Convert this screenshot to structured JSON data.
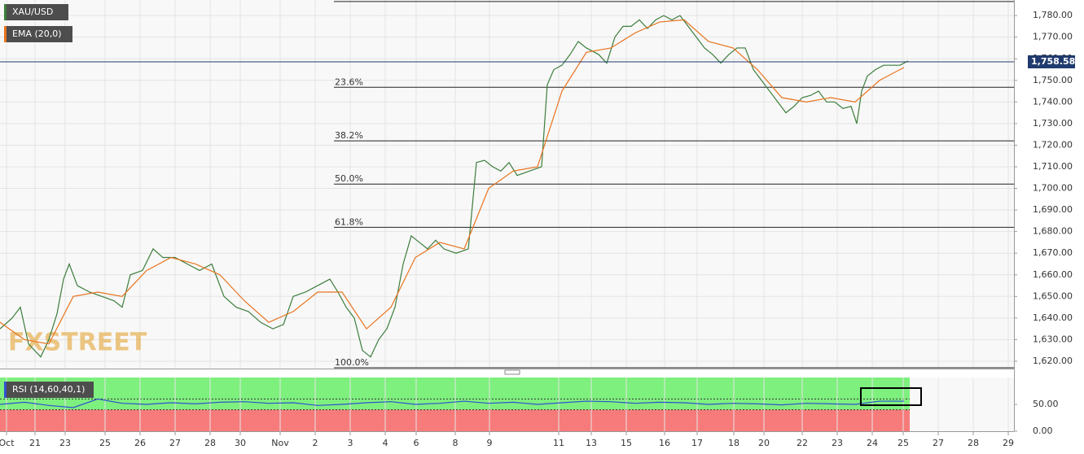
{
  "chart_data": [
    {
      "type": "line",
      "xlim": [
        0,
        1245
      ],
      "xticks": [
        {
          "value": 8,
          "label": "Oct"
        },
        {
          "value": 43,
          "label": "21"
        },
        {
          "value": 80,
          "label": "23"
        },
        {
          "value": 129,
          "label": "25"
        },
        {
          "value": 172,
          "label": "26"
        },
        {
          "value": 215,
          "label": "27"
        },
        {
          "value": 258,
          "label": "28"
        },
        {
          "value": 295,
          "label": "30"
        },
        {
          "value": 344,
          "label": "Nov"
        },
        {
          "value": 387,
          "label": "2"
        },
        {
          "value": 430,
          "label": "3"
        },
        {
          "value": 473,
          "label": "4"
        },
        {
          "value": 511,
          "label": "6"
        },
        {
          "value": 559,
          "label": "8"
        },
        {
          "value": 601,
          "label": "9"
        },
        {
          "value": 686,
          "label": "11"
        },
        {
          "value": 726,
          "label": "13"
        },
        {
          "value": 769,
          "label": "15"
        },
        {
          "value": 816,
          "label": "16"
        },
        {
          "value": 856,
          "label": "17"
        },
        {
          "value": 901,
          "label": "18"
        },
        {
          "value": 938,
          "label": "20"
        },
        {
          "value": 985,
          "label": "22"
        },
        {
          "value": 1028,
          "label": "23"
        },
        {
          "value": 1071,
          "label": "24"
        },
        {
          "value": 1109,
          "label": "25"
        },
        {
          "value": 1152,
          "label": "27"
        },
        {
          "value": 1195,
          "label": "28"
        },
        {
          "value": 1238,
          "label": "29"
        }
      ],
      "ylim": [
        1616.6,
        1787.2
      ],
      "yticks": [
        {
          "value": 1620,
          "label": "1,620.00"
        },
        {
          "value": 1630,
          "label": "1,630.00"
        },
        {
          "value": 1640,
          "label": "1,640.00"
        },
        {
          "value": 1650,
          "label": "1,650.00"
        },
        {
          "value": 1660,
          "label": "1,660.00"
        },
        {
          "value": 1670,
          "label": "1,670.00"
        },
        {
          "value": 1680,
          "label": "1,680.00"
        },
        {
          "value": 1690,
          "label": "1,690.00"
        },
        {
          "value": 1700,
          "label": "1,700.00"
        },
        {
          "value": 1710,
          "label": "1,710.00"
        },
        {
          "value": 1720,
          "label": "1,720.00"
        },
        {
          "value": 1730,
          "label": "1,730.00"
        },
        {
          "value": 1740,
          "label": "1,740.00"
        },
        {
          "value": 1750,
          "label": "1,750.00"
        },
        {
          "value": 1760,
          "label": "1,760.00"
        },
        {
          "value": 1770,
          "label": "1,770.00"
        },
        {
          "value": 1780,
          "label": "1,780.00"
        }
      ],
      "grid": true,
      "watermark": "FXSTREET",
      "series": [
        {
          "name": "XAU/USD",
          "color": "#3c7d3c",
          "x": [
            0,
            15,
            25,
            35,
            50,
            60,
            70,
            78,
            85,
            95,
            110,
            125,
            140,
            150,
            160,
            175,
            188,
            200,
            215,
            230,
            245,
            260,
            275,
            290,
            305,
            320,
            335,
            348,
            360,
            375,
            390,
            405,
            415,
            425,
            435,
            445,
            455,
            465,
            475,
            485,
            495,
            505,
            515,
            525,
            535,
            545,
            560,
            575,
            585,
            595,
            605,
            615,
            625,
            635,
            650,
            665,
            672,
            680,
            690,
            700,
            710,
            720,
            735,
            745,
            755,
            765,
            775,
            785,
            795,
            805,
            815,
            825,
            835,
            845,
            855,
            865,
            875,
            885,
            895,
            905,
            915,
            925,
            935,
            945,
            955,
            965,
            975,
            985,
            995,
            1005,
            1015,
            1025,
            1035,
            1045,
            1052,
            1058,
            1065,
            1075,
            1085,
            1095,
            1105,
            1115
          ],
          "values": [
            1635,
            1640,
            1645,
            1628,
            1622,
            1630,
            1642,
            1658,
            1665,
            1655,
            1652,
            1650,
            1648,
            1645,
            1660,
            1662,
            1672,
            1668,
            1668,
            1665,
            1662,
            1665,
            1650,
            1645,
            1643,
            1638,
            1635,
            1637,
            1650,
            1652,
            1655,
            1658,
            1652,
            1645,
            1640,
            1625,
            1622,
            1630,
            1635,
            1645,
            1665,
            1678,
            1675,
            1672,
            1676,
            1672,
            1670,
            1672,
            1712,
            1713,
            1710,
            1708,
            1712,
            1706,
            1708,
            1710,
            1748,
            1755,
            1757,
            1762,
            1768,
            1765,
            1762,
            1758,
            1770,
            1775,
            1775,
            1778,
            1774,
            1778,
            1780,
            1778,
            1780,
            1775,
            1770,
            1765,
            1762,
            1758,
            1762,
            1765,
            1765,
            1755,
            1750,
            1745,
            1740,
            1735,
            1738,
            1742,
            1743,
            1745,
            1740,
            1740,
            1737,
            1738,
            1730,
            1745,
            1752,
            1755,
            1757,
            1757,
            1757,
            1759
          ]
        },
        {
          "name": "EMA (20,0)",
          "color": "#e8731e",
          "x": [
            0,
            30,
            60,
            90,
            120,
            150,
            180,
            210,
            240,
            270,
            300,
            330,
            360,
            390,
            420,
            450,
            480,
            510,
            540,
            570,
            600,
            630,
            660,
            690,
            720,
            750,
            780,
            810,
            840,
            870,
            900,
            930,
            960,
            990,
            1020,
            1050,
            1080,
            1110
          ],
          "values": [
            1638,
            1630,
            1628,
            1650,
            1652,
            1650,
            1662,
            1668,
            1665,
            1660,
            1648,
            1638,
            1643,
            1652,
            1652,
            1635,
            1645,
            1668,
            1675,
            1672,
            1700,
            1708,
            1710,
            1745,
            1763,
            1765,
            1772,
            1777,
            1778,
            1768,
            1765,
            1755,
            1742,
            1740,
            1742,
            1740,
            1750,
            1756
          ]
        }
      ],
      "levels": [
        {
          "value": 1786.5
        },
        {
          "value": 1746.8,
          "label": "23.6%"
        },
        {
          "value": 1722,
          "label": "38.2%"
        },
        {
          "value": 1702,
          "label": "50.0%"
        },
        {
          "value": 1682,
          "label": "61.8%"
        },
        {
          "value": 1617,
          "label": "100.0%"
        }
      ],
      "current_price": {
        "value": 1758.58,
        "label": "1,758.58",
        "color": "#1f3a6e"
      }
    },
    {
      "type": "line",
      "ylim": [
        0,
        100
      ],
      "yticks": [
        {
          "value": 0,
          "label": "0.00"
        },
        {
          "value": 50,
          "label": "50.00"
        }
      ],
      "levels": [
        60,
        40
      ],
      "series": [
        {
          "name": "RSI (14,60,40,1)",
          "color": "#3050d0",
          "x": [
            0,
            30,
            60,
            90,
            120,
            150,
            180,
            210,
            240,
            270,
            300,
            330,
            360,
            390,
            420,
            450,
            480,
            510,
            540,
            570,
            600,
            630,
            660,
            690,
            720,
            750,
            780,
            810,
            840,
            870,
            900,
            930,
            960,
            990,
            1020,
            1050,
            1080,
            1110
          ],
          "values": [
            50,
            54,
            48,
            44,
            60,
            52,
            50,
            53,
            51,
            54,
            55,
            52,
            53,
            48,
            50,
            53,
            55,
            50,
            52,
            56,
            52,
            54,
            50,
            53,
            56,
            55,
            52,
            54,
            53,
            50,
            52,
            51,
            49,
            52,
            51,
            50,
            56,
            56
          ]
        }
      ]
    }
  ]
}
